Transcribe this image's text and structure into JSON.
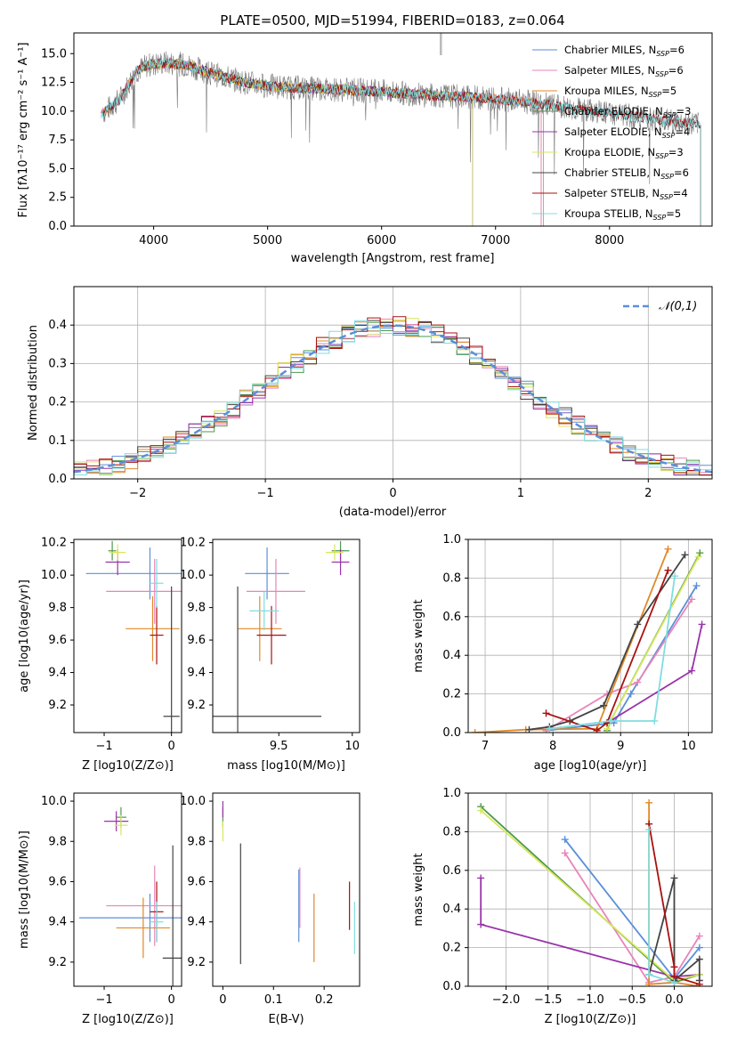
{
  "colors": {
    "chabrier_miles": "#5B8FD9",
    "salpeter_miles": "#E884B8",
    "kroupa_miles": "#E08A27",
    "chabrier_elodie": "#4E9A4E",
    "salpeter_elodie": "#9933AA",
    "kroupa_elodie": "#D9E65C",
    "chabrier_stelib": "#444444",
    "salpeter_stelib": "#AA1111",
    "kroupa_stelib": "#7FDDE0",
    "normal": "#5B8FD9"
  },
  "chart_data": [
    {
      "id": "spectrum",
      "type": "line",
      "title": "PLATE=0500, MJD=51994, FIBERID=0183, z=0.064",
      "xlabel": "wavelength [Angstrom, rest frame]",
      "ylabel": "Flux [f$_\\lambda$10$^{-17}$ erg cm$^{-2}$ s$^{-1}$ A$^{-1}$]",
      "ylabel_display": "Flux [fλ10⁻¹⁷ erg cm⁻² s⁻¹ A⁻¹]",
      "xlim": [
        3300,
        8900
      ],
      "ylim": [
        0,
        16.8
      ],
      "xticks": [
        4000,
        5000,
        6000,
        7000,
        8000
      ],
      "yticks": [
        0.0,
        2.5,
        5.0,
        7.5,
        10.0,
        12.5,
        15.0
      ],
      "continuum": {
        "x": [
          3550,
          3700,
          3850,
          3950,
          4100,
          4300,
          4500,
          4800,
          5000,
          5300,
          5600,
          6000,
          6400,
          6800,
          7200,
          7600,
          8000,
          8400,
          8800
        ],
        "y": [
          9.8,
          11.0,
          13.5,
          14.0,
          14.2,
          14.0,
          13.3,
          12.5,
          12.2,
          12.0,
          11.9,
          11.7,
          11.4,
          11.2,
          10.9,
          10.3,
          9.8,
          9.3,
          8.8
        ]
      },
      "legend": [
        {
          "label": "Chabrier MILES, N",
          "sub": "SSP",
          "tail": "=6",
          "color_key": "chabrier_miles"
        },
        {
          "label": "Salpeter MILES, N",
          "sub": "SSP",
          "tail": "=6",
          "color_key": "salpeter_miles"
        },
        {
          "label": "Kroupa MILES, N",
          "sub": "SSP",
          "tail": "=5",
          "color_key": "kroupa_miles"
        },
        {
          "label": "Chabrier ELODIE, N",
          "sub": "SSP",
          "tail": "=3",
          "color_key": "chabrier_elodie"
        },
        {
          "label": "Salpeter ELODIE, N",
          "sub": "SSP",
          "tail": "=4",
          "color_key": "salpeter_elodie"
        },
        {
          "label": "Kroupa ELODIE, N",
          "sub": "SSP",
          "tail": "=3",
          "color_key": "kroupa_elodie"
        },
        {
          "label": "Chabrier STELIB, N",
          "sub": "SSP",
          "tail": "=6",
          "color_key": "chabrier_stelib"
        },
        {
          "label": "Salpeter STELIB, N",
          "sub": "SSP",
          "tail": "=4",
          "color_key": "salpeter_stelib"
        },
        {
          "label": "Kroupa STELIB, N",
          "sub": "SSP",
          "tail": "=5",
          "color_key": "kroupa_stelib"
        }
      ],
      "legend_position": "upper-right"
    },
    {
      "id": "residuals",
      "type": "step",
      "xlabel": "(data-model)/error",
      "ylabel": "Normed distribution",
      "xlim": [
        -2.5,
        2.5
      ],
      "ylim": [
        0,
        0.5
      ],
      "xticks": [
        -2,
        -1,
        0,
        1,
        2
      ],
      "yticks": [
        0.0,
        0.1,
        0.2,
        0.3,
        0.4
      ],
      "grid": true,
      "legend_label": "N(0,1)",
      "legend_position": "upper-right",
      "bin_width": 0.1
    },
    {
      "id": "age_vs_Z",
      "type": "errorbar",
      "xlabel": "Z [log10(Z/Z⊙)]",
      "ylabel": "age  [log10(age/yr)]",
      "xlim": [
        -1.45,
        0.15
      ],
      "ylim": [
        9.03,
        10.22
      ],
      "xticks": [
        -1,
        0
      ],
      "yticks": [
        9.2,
        9.4,
        9.6,
        9.8,
        10.0,
        10.2
      ],
      "points": [
        {
          "color_key": "chabrier_miles",
          "x": -0.32,
          "xerr": 0.95,
          "y": 10.01,
          "yerr": 0.16
        },
        {
          "color_key": "salpeter_miles",
          "x": -0.25,
          "xerr": 0.72,
          "y": 9.9,
          "yerr": 0.2
        },
        {
          "color_key": "kroupa_miles",
          "x": -0.28,
          "xerr": 0.4,
          "y": 9.67,
          "yerr": 0.2
        },
        {
          "color_key": "chabrier_elodie",
          "x": -0.88,
          "xerr": 0.06,
          "y": 10.15,
          "yerr": 0.06
        },
        {
          "color_key": "salpeter_elodie",
          "x": -0.8,
          "xerr": 0.18,
          "y": 10.08,
          "yerr": 0.08
        },
        {
          "color_key": "kroupa_elodie",
          "x": -0.8,
          "xerr": 0.12,
          "y": 10.14,
          "yerr": 0.05
        },
        {
          "color_key": "chabrier_stelib",
          "x": 0.0,
          "xerr": 0.12,
          "y": 9.13,
          "yerr": 0.8
        },
        {
          "color_key": "salpeter_stelib",
          "x": -0.22,
          "xerr": 0.1,
          "y": 9.63,
          "yerr": 0.18
        },
        {
          "color_key": "kroupa_stelib",
          "x": -0.22,
          "xerr": 0.1,
          "y": 9.95,
          "yerr": 0.15
        }
      ]
    },
    {
      "id": "age_vs_mass",
      "type": "errorbar",
      "xlabel": "mass [log10(M/M⊙)]",
      "ylabel": "",
      "xlim": [
        9.05,
        10.05
      ],
      "ylim": [
        9.03,
        10.22
      ],
      "xticks": [
        9.5,
        10.0
      ],
      "yticks": [
        9.2,
        9.4,
        9.6,
        9.8,
        10.0,
        10.2
      ],
      "points": [
        {
          "color_key": "chabrier_miles",
          "x": 9.42,
          "xerr": 0.15,
          "y": 10.01,
          "yerr": 0.16
        },
        {
          "color_key": "salpeter_miles",
          "x": 9.48,
          "xerr": 0.2,
          "y": 9.9,
          "yerr": 0.2
        },
        {
          "color_key": "kroupa_miles",
          "x": 9.37,
          "xerr": 0.15,
          "y": 9.67,
          "yerr": 0.2
        },
        {
          "color_key": "chabrier_elodie",
          "x": 9.92,
          "xerr": 0.06,
          "y": 10.15,
          "yerr": 0.06
        },
        {
          "color_key": "salpeter_elodie",
          "x": 9.92,
          "xerr": 0.06,
          "y": 10.08,
          "yerr": 0.08
        },
        {
          "color_key": "kroupa_elodie",
          "x": 9.88,
          "xerr": 0.06,
          "y": 10.14,
          "yerr": 0.05
        },
        {
          "color_key": "chabrier_stelib",
          "x": 9.22,
          "xerr": 0.57,
          "y": 9.13,
          "yerr": 0.8
        },
        {
          "color_key": "salpeter_stelib",
          "x": 9.45,
          "xerr": 0.1,
          "y": 9.63,
          "yerr": 0.18
        },
        {
          "color_key": "kroupa_stelib",
          "x": 9.4,
          "xerr": 0.1,
          "y": 9.78,
          "yerr": 0.12
        }
      ]
    },
    {
      "id": "massweight_vs_age",
      "type": "line",
      "xlabel": "age  [log10(age/yr)]",
      "ylabel": "mass weight",
      "xlim": [
        6.75,
        10.35
      ],
      "ylim": [
        0,
        1.0
      ],
      "xticks": [
        7,
        8,
        9,
        10
      ],
      "yticks": [
        0.0,
        0.2,
        0.4,
        0.6,
        0.8,
        1.0
      ],
      "grid": true,
      "series": [
        {
          "color_key": "chabrier_miles",
          "x": [
            7.9,
            8.9,
            9.15,
            10.12
          ],
          "y": [
            0.01,
            0.05,
            0.2,
            0.76
          ]
        },
        {
          "color_key": "salpeter_miles",
          "x": [
            7.9,
            8.8,
            9.25,
            10.05
          ],
          "y": [
            0.01,
            0.2,
            0.26,
            0.69
          ]
        },
        {
          "color_key": "kroupa_miles",
          "x": [
            6.85,
            7.6,
            8.65,
            9.7
          ],
          "y": [
            0.0,
            0.015,
            0.02,
            0.95
          ]
        },
        {
          "color_key": "chabrier_elodie",
          "x": [
            8.8,
            8.85,
            10.17
          ],
          "y": [
            0.01,
            0.06,
            0.93
          ]
        },
        {
          "color_key": "salpeter_elodie",
          "x": [
            8.8,
            10.05,
            10.2
          ],
          "y": [
            0.05,
            0.32,
            0.56
          ]
        },
        {
          "color_key": "kroupa_elodie",
          "x": [
            8.8,
            8.85,
            10.15
          ],
          "y": [
            0.02,
            0.06,
            0.91
          ]
        },
        {
          "color_key": "chabrier_stelib",
          "x": [
            7.65,
            7.95,
            8.25,
            8.75,
            9.25,
            9.95
          ],
          "y": [
            0.015,
            0.03,
            0.06,
            0.14,
            0.56,
            0.92
          ]
        },
        {
          "color_key": "salpeter_stelib",
          "x": [
            7.9,
            8.65,
            8.8,
            9.7
          ],
          "y": [
            0.1,
            0.01,
            0.05,
            0.84
          ]
        },
        {
          "color_key": "kroupa_stelib",
          "x": [
            7.95,
            8.85,
            9.5,
            9.8
          ],
          "y": [
            0.02,
            0.06,
            0.06,
            0.81
          ]
        }
      ]
    },
    {
      "id": "mass_vs_Z",
      "type": "errorbar",
      "xlabel": "Z [log10(Z/Z⊙)]",
      "ylabel": "mass [log10(M/M⊙)]",
      "xlim": [
        -1.45,
        0.15
      ],
      "ylim": [
        9.08,
        10.04
      ],
      "xticks": [
        -1,
        0
      ],
      "yticks": [
        9.2,
        9.4,
        9.6,
        9.8,
        10.0
      ],
      "points": [
        {
          "color_key": "chabrier_miles",
          "x": -0.32,
          "xerr": 1.05,
          "y": 9.42,
          "yerr": 0.12
        },
        {
          "color_key": "salpeter_miles",
          "x": -0.25,
          "xerr": 0.72,
          "y": 9.48,
          "yerr": 0.2
        },
        {
          "color_key": "kroupa_miles",
          "x": -0.42,
          "xerr": 0.4,
          "y": 9.37,
          "yerr": 0.15
        },
        {
          "color_key": "chabrier_elodie",
          "x": -0.75,
          "xerr": 0.08,
          "y": 9.92,
          "yerr": 0.05
        },
        {
          "color_key": "salpeter_elodie",
          "x": -0.82,
          "xerr": 0.18,
          "y": 9.9,
          "yerr": 0.05
        },
        {
          "color_key": "kroupa_elodie",
          "x": -0.75,
          "xerr": 0.1,
          "y": 9.88,
          "yerr": 0.05
        },
        {
          "color_key": "chabrier_stelib",
          "x": 0.02,
          "xerr": 0.15,
          "y": 9.22,
          "yerr": 0.56
        },
        {
          "color_key": "salpeter_stelib",
          "x": -0.22,
          "xerr": 0.1,
          "y": 9.45,
          "yerr": 0.15
        },
        {
          "color_key": "kroupa_stelib",
          "x": -0.22,
          "xerr": 0.1,
          "y": 9.4,
          "yerr": 0.1
        }
      ]
    },
    {
      "id": "mass_vs_EBV",
      "type": "errorbar",
      "xlabel": "E(B-V)",
      "ylabel": "",
      "xlim": [
        -0.02,
        0.27
      ],
      "ylim": [
        9.08,
        10.04
      ],
      "xticks": [
        0.0,
        0.1,
        0.2
      ],
      "yticks": [
        9.2,
        9.4,
        9.6,
        9.8,
        10.0
      ],
      "points": [
        {
          "color_key": "chabrier_miles",
          "x": 0.15,
          "xerr": 0,
          "y": 9.48,
          "yerr": 0.18
        },
        {
          "color_key": "salpeter_miles",
          "x": 0.152,
          "xerr": 0,
          "y": 9.52,
          "yerr": 0.15
        },
        {
          "color_key": "kroupa_miles",
          "x": 0.18,
          "xerr": 0,
          "y": 9.37,
          "yerr": 0.17
        },
        {
          "color_key": "chabrier_elodie",
          "x": 0.0,
          "xerr": 0,
          "y": 9.92,
          "yerr": 0.05
        },
        {
          "color_key": "salpeter_elodie",
          "x": 0.0,
          "xerr": 0,
          "y": 9.96,
          "yerr": 0.04
        },
        {
          "color_key": "kroupa_elodie",
          "x": 0.0,
          "xerr": 0,
          "y": 9.85,
          "yerr": 0.05
        },
        {
          "color_key": "chabrier_stelib",
          "x": 0.035,
          "xerr": 0,
          "y": 9.49,
          "yerr": 0.3
        },
        {
          "color_key": "salpeter_stelib",
          "x": 0.25,
          "xerr": 0,
          "y": 9.48,
          "yerr": 0.12
        },
        {
          "color_key": "kroupa_stelib",
          "x": 0.26,
          "xerr": 0,
          "y": 9.37,
          "yerr": 0.13
        }
      ]
    },
    {
      "id": "massweight_vs_Z",
      "type": "line",
      "xlabel": "Z [log10(Z/Z⊙)]",
      "ylabel": "mass weight",
      "xlim": [
        -2.45,
        0.45
      ],
      "ylim": [
        0,
        1.0
      ],
      "xticks": [
        -2.0,
        -1.5,
        -1.0,
        -0.5,
        0.0
      ],
      "yticks": [
        0.0,
        0.2,
        0.4,
        0.6,
        0.8,
        1.0
      ],
      "grid": true,
      "series": [
        {
          "color_key": "chabrier_miles",
          "x": [
            -1.3,
            0.0,
            0.3
          ],
          "y": [
            0.76,
            0.04,
            0.2
          ]
        },
        {
          "color_key": "salpeter_miles",
          "x": [
            -1.3,
            -0.3,
            0.0,
            0.3
          ],
          "y": [
            0.69,
            0.02,
            0.05,
            0.26
          ]
        },
        {
          "color_key": "kroupa_miles",
          "x": [
            -0.3,
            -0.3,
            0.0,
            0.3
          ],
          "y": [
            0.95,
            0.01,
            0.02,
            0.0
          ]
        },
        {
          "color_key": "chabrier_elodie",
          "x": [
            -2.3,
            0.0,
            0.3
          ],
          "y": [
            0.93,
            0.02,
            0.06
          ]
        },
        {
          "color_key": "salpeter_elodie",
          "x": [
            -2.3,
            -2.3,
            0.0,
            0.3
          ],
          "y": [
            0.56,
            0.32,
            0.05,
            0.06
          ]
        },
        {
          "color_key": "kroupa_elodie",
          "x": [
            -2.3,
            0.0,
            0.3
          ],
          "y": [
            0.91,
            0.03,
            0.06
          ]
        },
        {
          "color_key": "chabrier_stelib",
          "x": [
            -0.3,
            0.0,
            0.0,
            0.3,
            0.3
          ],
          "y": [
            0.06,
            0.56,
            0.03,
            0.14,
            0.03
          ]
        },
        {
          "color_key": "salpeter_stelib",
          "x": [
            -0.3,
            0.0,
            0.0,
            0.3
          ],
          "y": [
            0.84,
            0.1,
            0.05,
            0.01
          ]
        },
        {
          "color_key": "kroupa_stelib",
          "x": [
            -0.3,
            -0.3,
            0.0
          ],
          "y": [
            0.81,
            0.06,
            0.02
          ]
        }
      ]
    }
  ]
}
